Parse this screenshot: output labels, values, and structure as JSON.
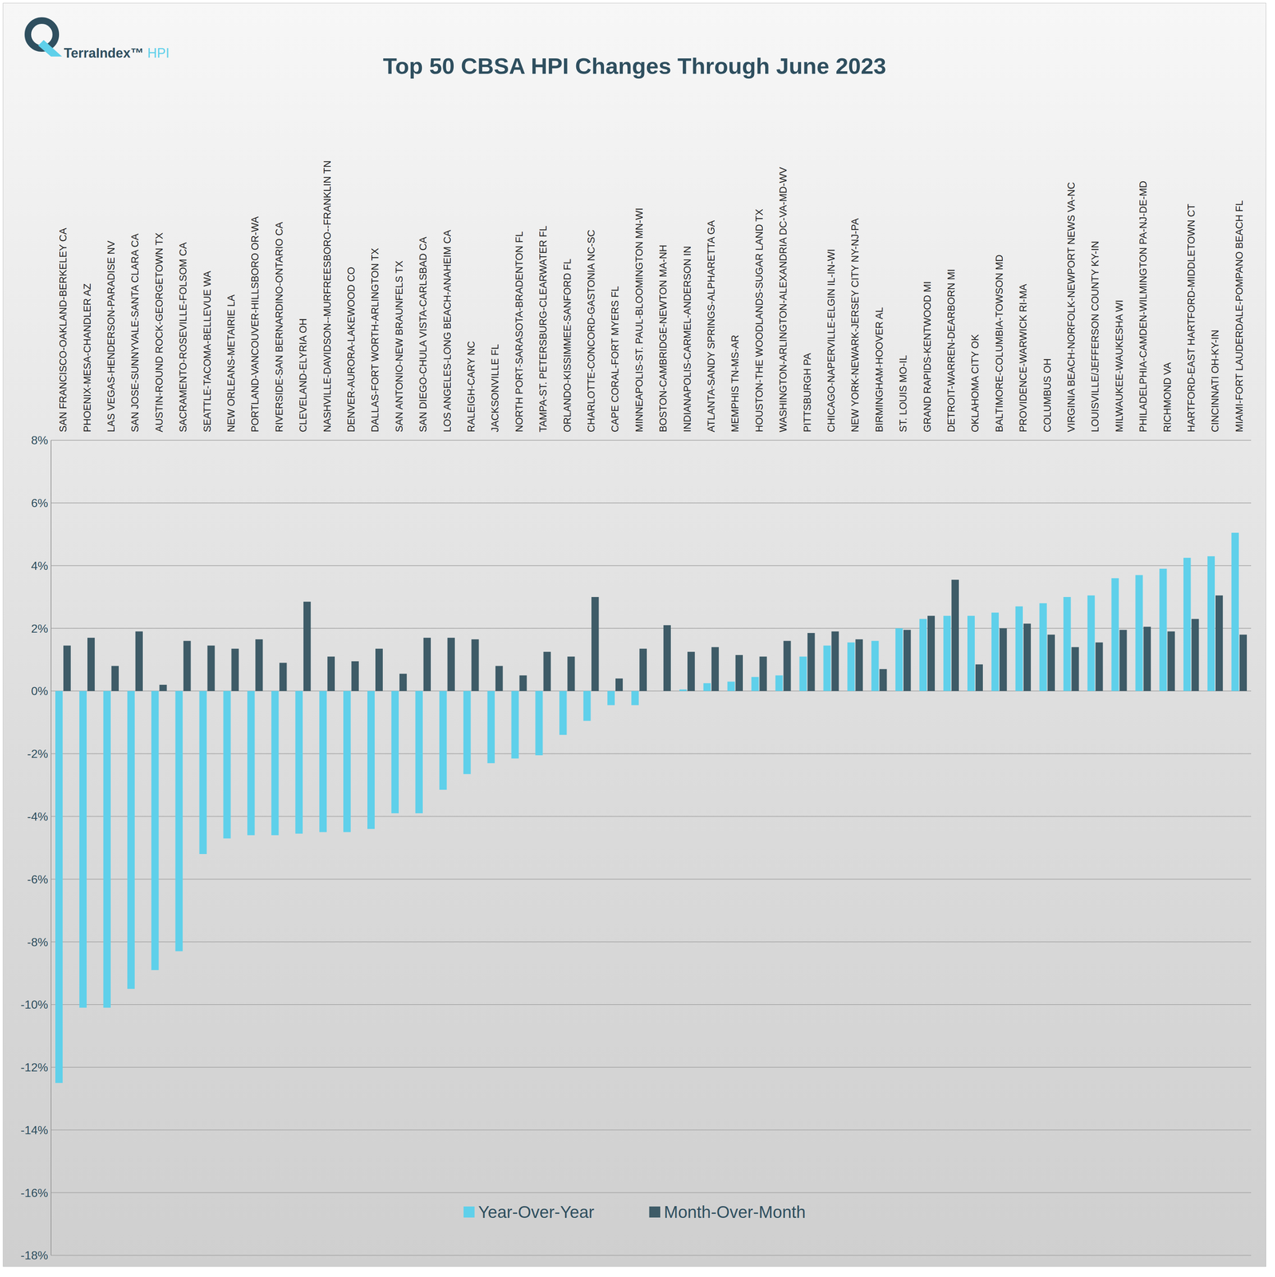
{
  "chart_data": {
    "type": "bar",
    "title": "Top 50 CBSA HPI Changes Through June 2023",
    "logo_text": "TerraIndex™",
    "logo_suffix": "HPI",
    "categories": [
      "SAN FRANCISCO-OAKLAND-BERKELEY CA",
      "PHOENIX-MESA-CHANDLER AZ",
      "LAS VEGAS-HENDERSON-PARADISE NV",
      "SAN JOSE-SUNNYVALE-SANTA CLARA CA",
      "AUSTIN-ROUND ROCK-GEORGETOWN TX",
      "SACRAMENTO-ROSEVILLE-FOLSOM CA",
      "SEATTLE-TACOMA-BELLEVUE WA",
      "NEW ORLEANS-METAIRIE LA",
      "PORTLAND-VANCOUVER-HILLSBORO OR-WA",
      "RIVERSIDE-SAN BERNARDINO-ONTARIO CA",
      "CLEVELAND-ELYRIA OH",
      "NASHVILLE-DAVIDSON--MURFREESBORO--FRANKLIN TN",
      "DENVER-AURORA-LAKEWOOD CO",
      "DALLAS-FORT WORTH-ARLINGTON TX",
      "SAN ANTONIO-NEW BRAUNFELS TX",
      "SAN DIEGO-CHULA VISTA-CARLSBAD CA",
      "LOS ANGELES-LONG BEACH-ANAHEIM CA",
      "RALEIGH-CARY NC",
      "JACKSONVILLE FL",
      "NORTH PORT-SARASOTA-BRADENTON FL",
      "TAMPA-ST. PETERSBURG-CLEARWATER FL",
      "ORLANDO-KISSIMMEE-SANFORD FL",
      "CHARLOTTE-CONCORD-GASTONIA NC-SC",
      "CAPE CORAL-FORT MYERS FL",
      "MINNEAPOLIS-ST. PAUL-BLOOMINGTON MN-WI",
      "BOSTON-CAMBRIDGE-NEWTON MA-NH",
      "INDIANAPOLIS-CARMEL-ANDERSON IN",
      "ATLANTA-SANDY SPRINGS-ALPHARETTA GA",
      "MEMPHIS TN-MS-AR",
      "HOUSTON-THE WOODLANDS-SUGAR LAND TX",
      "WASHINGTON-ARLINGTON-ALEXANDRIA DC-VA-MD-WV",
      "PITTSBURGH PA",
      "CHICAGO-NAPERVILLE-ELGIN IL-IN-WI",
      "NEW YORK-NEWARK-JERSEY CITY NY-NJ-PA",
      "BIRMINGHAM-HOOVER AL",
      "ST. LOUIS MO-IL",
      "GRAND RAPIDS-KENTWOOD MI",
      "DETROIT-WARREN-DEARBORN MI",
      "OKLAHOMA CITY OK",
      "BALTIMORE-COLUMBIA-TOWSON MD",
      "PROVIDENCE-WARWICK RI-MA",
      "COLUMBUS OH",
      "VIRGINIA BEACH-NORFOLK-NEWPORT NEWS VA-NC",
      "LOUISVILLE/JEFFERSON COUNTY KY-IN",
      "MILWAUKEE-WAUKESHA WI",
      "PHILADELPHIA-CAMDEN-WILMINGTON PA-NJ-DE-MD",
      "RICHMOND VA",
      "HARTFORD-EAST HARTFORD-MIDDLETOWN CT",
      "CINCINNATI OH-KY-IN",
      "MIAMI-FORT LAUDERDALE-POMPANO BEACH FL"
    ],
    "series": [
      {
        "name": "Year-Over-Year",
        "color": "#5fd0ea",
        "values": [
          -12.5,
          -10.1,
          -10.1,
          -9.5,
          -8.9,
          -8.3,
          -5.2,
          -4.7,
          -4.6,
          -4.6,
          -4.55,
          -4.5,
          -4.5,
          -4.4,
          -3.9,
          -3.9,
          -3.15,
          -2.65,
          -2.3,
          -2.15,
          -2.05,
          -1.4,
          -0.95,
          -0.45,
          -0.45,
          0.0,
          0.05,
          0.25,
          0.3,
          0.45,
          0.5,
          1.1,
          1.45,
          1.55,
          1.6,
          2.0,
          2.3,
          2.4,
          2.4,
          2.5,
          2.7,
          2.8,
          3.0,
          3.05,
          3.6,
          3.7,
          3.9,
          4.25,
          4.3,
          5.05
        ]
      },
      {
        "name": "Month-Over-Month",
        "color": "#3e5b67",
        "values": [
          1.45,
          1.7,
          0.8,
          1.9,
          0.2,
          1.6,
          1.45,
          1.35,
          1.65,
          0.9,
          2.85,
          1.1,
          0.95,
          1.35,
          0.55,
          1.7,
          1.7,
          1.65,
          0.8,
          0.5,
          1.25,
          1.1,
          3.0,
          0.4,
          1.35,
          2.1,
          1.25,
          1.4,
          1.15,
          1.1,
          1.6,
          1.85,
          1.9,
          1.65,
          0.7,
          1.95,
          2.4,
          3.55,
          0.85,
          2.0,
          2.15,
          1.8,
          1.4,
          1.55,
          1.95,
          2.05,
          1.9,
          2.3,
          3.05,
          1.8
        ]
      }
    ],
    "ylim": [
      -18,
      8
    ],
    "yticks": [
      {
        "value": -18,
        "label": "-18%"
      },
      {
        "value": -16,
        "label": "-16%"
      },
      {
        "value": -14,
        "label": "-14%"
      },
      {
        "value": -12,
        "label": "-12%"
      },
      {
        "value": -10,
        "label": "-10%"
      },
      {
        "value": -8,
        "label": "-8%"
      },
      {
        "value": -6,
        "label": "-6%"
      },
      {
        "value": -4,
        "label": "-4%"
      },
      {
        "value": -2,
        "label": "-2%"
      },
      {
        "value": 0,
        "label": "0%"
      },
      {
        "value": 2,
        "label": "2%"
      },
      {
        "value": 4,
        "label": "4%"
      },
      {
        "value": 6,
        "label": "6%"
      },
      {
        "value": 8,
        "label": "8%"
      }
    ],
    "grid": true,
    "legend": "bottom"
  }
}
